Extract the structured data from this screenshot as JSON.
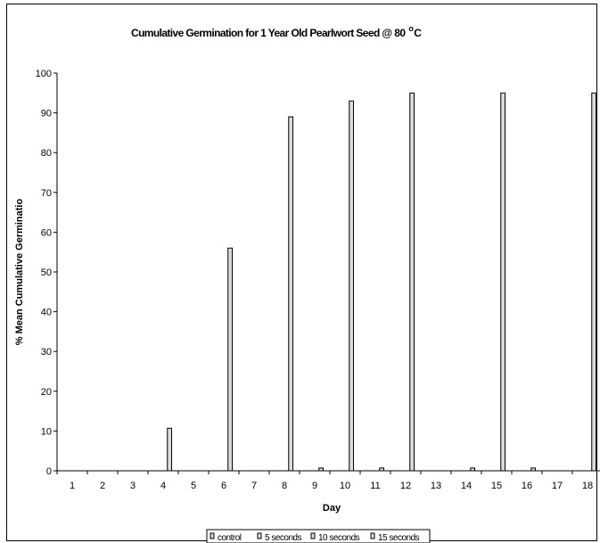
{
  "chart_data": {
    "type": "bar",
    "title_main": "Cumulative Germination for 1 Year Old Pearlwort Seed @ 80",
    "title_degree": "o",
    "title_unit": "C",
    "xlabel": "Day",
    "ylabel": "% Mean Cumulative Germinatio",
    "ylim": [
      0,
      100
    ],
    "yticks": [
      0,
      10,
      20,
      30,
      40,
      50,
      60,
      70,
      80,
      90,
      100
    ],
    "categories": [
      "1",
      "2",
      "3",
      "4",
      "5",
      "6",
      "7",
      "8",
      "9",
      "10",
      "11",
      "12",
      "13",
      "14",
      "15",
      "16",
      "17",
      "18"
    ],
    "grid": false,
    "legend_position": "bottom",
    "series": [
      {
        "name": "control",
        "values": [
          0,
          0,
          0,
          0,
          0,
          0,
          0,
          0,
          0,
          0,
          0,
          0,
          0,
          0,
          0,
          0,
          0,
          0
        ]
      },
      {
        "name": "5 seconds",
        "values": [
          0,
          0,
          0,
          0,
          0,
          0,
          0,
          0,
          0,
          0,
          0,
          0,
          0,
          0,
          0,
          0,
          0,
          0
        ]
      },
      {
        "name": "10 seconds",
        "values": [
          0,
          0,
          0,
          0,
          0,
          0,
          0,
          0,
          0,
          0,
          0,
          0,
          0,
          0,
          0,
          0,
          0,
          0
        ]
      },
      {
        "name": "15 seconds",
        "values": [
          0,
          0,
          0,
          10.7,
          0,
          56,
          0,
          89,
          0.7,
          93,
          0.7,
          95,
          0,
          0.7,
          95,
          0.7,
          0,
          95
        ]
      }
    ],
    "colors": {
      "bar_fill": "#dcdcdc",
      "bar_stroke": "#000000"
    }
  }
}
